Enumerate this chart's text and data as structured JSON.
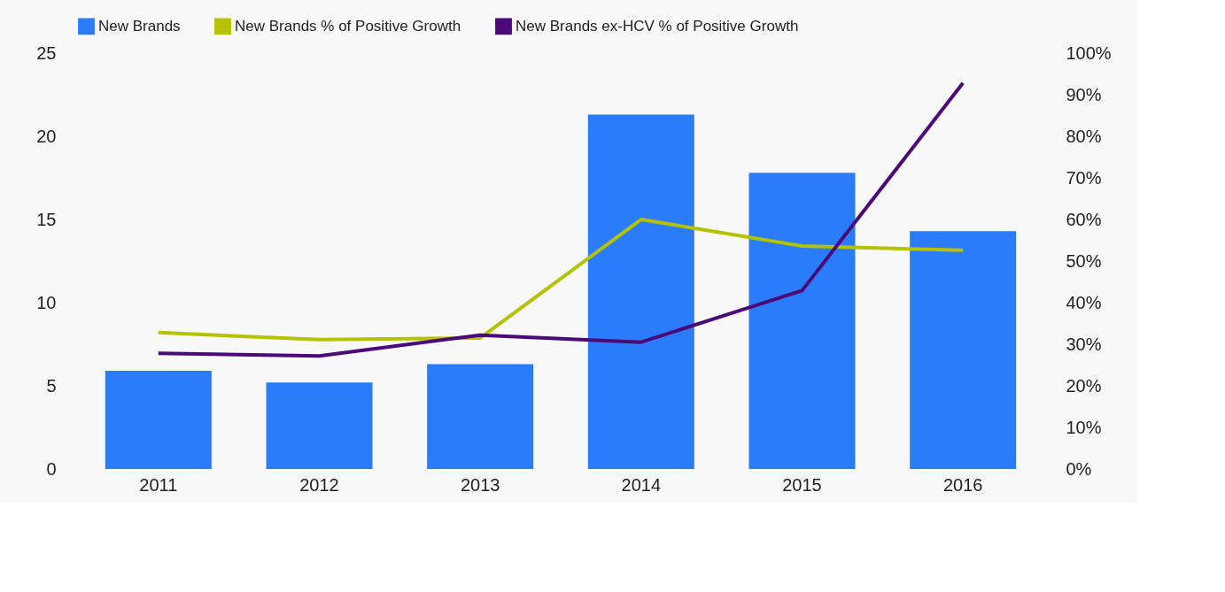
{
  "chart_data": {
    "type": "bar",
    "categories": [
      "2011",
      "2012",
      "2013",
      "2014",
      "2015",
      "2016"
    ],
    "series": [
      {
        "name": "New Brands",
        "color": "#2a7cfa",
        "values": [
          5.9,
          5.2,
          6.3,
          21.3,
          17.8,
          14.3
        ]
      },
      {
        "name": "New Brands % of Positive Growth",
        "type": "line",
        "axis": "y2",
        "color": "#b5c200",
        "values": [
          32.8,
          31.1,
          31.5,
          60,
          53.6,
          52.6
        ]
      },
      {
        "name": "New Brands ex-HCV % of Positive Growth",
        "type": "line",
        "axis": "y2",
        "color": "#4b0a78",
        "values": [
          27.8,
          27.2,
          32.2,
          30.5,
          42.9,
          92.8
        ]
      }
    ],
    "ylim": [
      0,
      25
    ],
    "yticks": [
      0,
      5,
      10,
      15,
      20,
      25
    ],
    "y2lim": [
      0,
      100
    ],
    "y2ticks": [
      {
        "value": 0,
        "label": "0%"
      },
      {
        "value": 10,
        "label": "10%"
      },
      {
        "value": 20,
        "label": "20%"
      },
      {
        "value": 30,
        "label": "30%"
      },
      {
        "value": 40,
        "label": "40%"
      },
      {
        "value": 50,
        "label": "50%"
      },
      {
        "value": 60,
        "label": "60%"
      },
      {
        "value": 70,
        "label": "70%"
      },
      {
        "value": 80,
        "label": "80%"
      },
      {
        "value": 90,
        "label": "90%"
      },
      {
        "value": 100,
        "label": "100%"
      }
    ],
    "legend": "top",
    "grid": false,
    "line_style": "solid",
    "marker": "none"
  }
}
